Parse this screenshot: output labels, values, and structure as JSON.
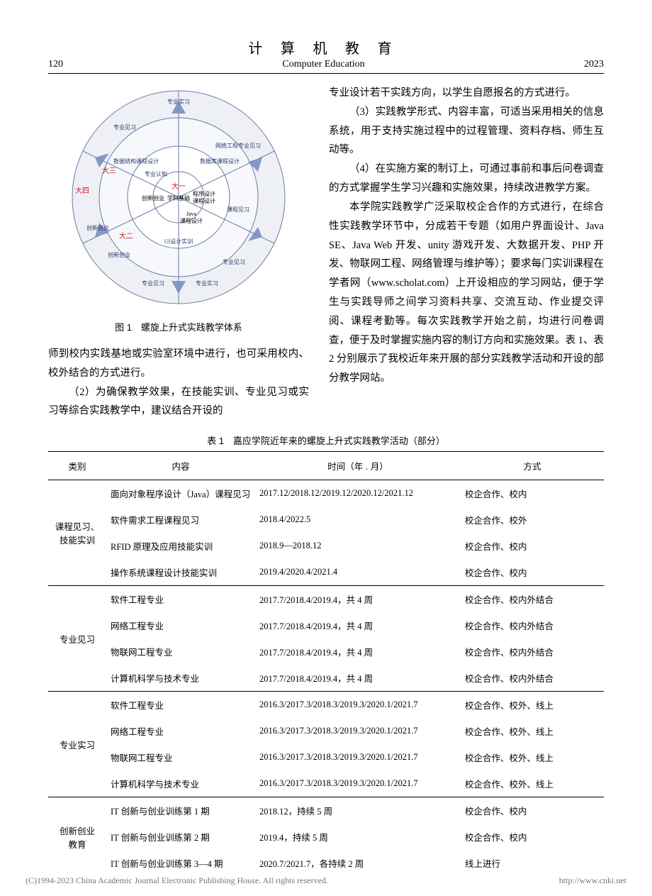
{
  "header": {
    "page_number": "120",
    "journal_cn": "计 算 机 教 育",
    "journal_en": "Computer Education",
    "year": "2023"
  },
  "figure1": {
    "type": "spiral-diagram",
    "caption": "图 1　螺旋上升式实践教学体系",
    "background_color": "#ffffff",
    "ring_fill": "#eef0f6",
    "ring_stroke": "#6a7aa0",
    "arrow_fill": "#7a8ec2",
    "center_fill": "#ffffff",
    "year_labels": {
      "y1": "大一",
      "y2": "大二",
      "y3": "大三",
      "y4": "大四",
      "color": "#d02020"
    },
    "center_items": [
      "创新创业",
      "学科基础",
      "程序设计",
      "课程设计",
      "Java",
      "课程设计"
    ],
    "ring1_items": [
      "专业认知",
      "数据结构课程设计",
      "数据库课程设计",
      "网络工程专业见习",
      "UI设计实训",
      "课程见习"
    ],
    "outer_items": [
      "专业实习",
      "专业见习",
      "创新创业",
      "创新创业",
      "专业见习",
      "专业实习",
      "专业见习"
    ]
  },
  "left_paragraphs": [
    "师到校内实践基地或实验室环境中进行，也可采用校内、校外结合的方式进行。",
    "（2）为确保教学效果，在技能实训、专业见习或实习等综合实践教学中，建议结合开设的"
  ],
  "right_paragraphs": [
    "专业设计若干实践方向，以学生自愿报名的方式进行。",
    "（3）实践教学形式、内容丰富，可适当采用相关的信息系统，用于支持实施过程中的过程管理、资料存档、师生互动等。",
    "（4）在实施方案的制订上，可通过事前和事后问卷调查的方式掌握学生学习兴趣和实施效果，持续改进教学方案。",
    "本学院实践教学广泛采取校企合作的方式进行，在综合性实践教学环节中，分成若干专题（如用户界面设计、Java SE、Java Web 开发、unity 游戏开发、大数据开发、PHP 开发、物联网工程、网络管理与维护等）；要求每门实训课程在学者网（www.scholat.com）上开设相应的学习网站，便于学生与实践导师之间学习资料共享、交流互动、作业提交评阅、课程考勤等。每次实践教学开始之前，均进行问卷调查，便于及时掌握实施内容的制订方向和实施效果。表 1、表 2 分别展示了我校近年来开展的部分实践教学活动和开设的部分教学网站。"
  ],
  "table1": {
    "caption": "表 1　嘉应学院近年来的螺旋上升式实践教学活动（部分）",
    "columns": [
      "类别",
      "内容",
      "时间（年 . 月）",
      "方式"
    ],
    "groups": [
      {
        "category": "课程见习、\n技能实训",
        "rows": [
          [
            "面向对象程序设计（Java）课程见习",
            "2017.12/2018.12/2019.12/2020.12/2021.12",
            "校企合作、校内"
          ],
          [
            "软件需求工程课程见习",
            "2018.4/2022.5",
            "校企合作、校外"
          ],
          [
            "RFID 原理及应用技能实训",
            "2018.9—2018.12",
            "校企合作、校内"
          ],
          [
            "操作系统课程设计技能实训",
            "2019.4/2020.4/2021.4",
            "校企合作、校内"
          ]
        ]
      },
      {
        "category": "专业见习",
        "rows": [
          [
            "软件工程专业",
            "2017.7/2018.4/2019.4，共 4 周",
            "校企合作、校内外结合"
          ],
          [
            "网络工程专业",
            "2017.7/2018.4/2019.4，共 4 周",
            "校企合作、校内外结合"
          ],
          [
            "物联网工程专业",
            "2017.7/2018.4/2019.4，共 4 周",
            "校企合作、校内外结合"
          ],
          [
            "计算机科学与技术专业",
            "2017.7/2018.4/2019.4，共 4 周",
            "校企合作、校内外结合"
          ]
        ]
      },
      {
        "category": "专业实习",
        "rows": [
          [
            "软件工程专业",
            "2016.3/2017.3/2018.3/2019.3/2020.1/2021.7",
            "校企合作、校外、线上"
          ],
          [
            "网络工程专业",
            "2016.3/2017.3/2018.3/2019.3/2020.1/2021.7",
            "校企合作、校外、线上"
          ],
          [
            "物联网工程专业",
            "2016.3/2017.3/2018.3/2019.3/2020.1/2021.7",
            "校企合作、校外、线上"
          ],
          [
            "计算机科学与技术专业",
            "2016.3/2017.3/2018.3/2019.3/2020.1/2021.7",
            "校企合作、校外、线上"
          ]
        ]
      },
      {
        "category": "创新创业\n教育",
        "rows": [
          [
            "IT 创新与创业训练第 1 期",
            "2018.12，持续 5 周",
            "校企合作、校内"
          ],
          [
            "IT 创新与创业训练第 2 期",
            "2019.4，持续 5 周",
            "校企合作、校内"
          ],
          [
            "IT 创新与创业训练第 3—4 期",
            "2020.7/2021.7，各持续 2 周",
            "线上进行"
          ]
        ]
      }
    ]
  },
  "footer": {
    "copyright": "(C)1994-2023 China Academic Journal Electronic Publishing House. All rights reserved.",
    "url": "http://www.cnki.net"
  }
}
